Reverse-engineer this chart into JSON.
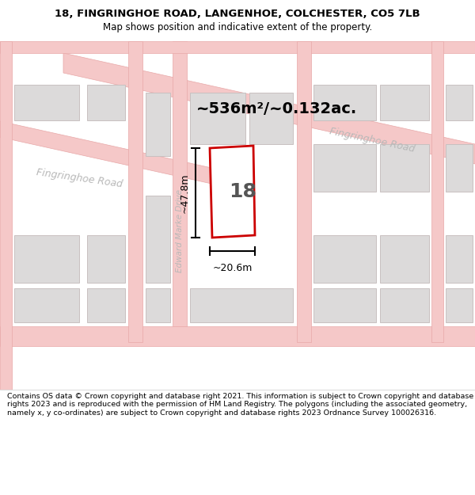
{
  "title_line1": "18, FINGRINGHOE ROAD, LANGENHOE, COLCHESTER, CO5 7LB",
  "title_line2": "Map shows position and indicative extent of the property.",
  "footer": "Contains OS data © Crown copyright and database right 2021. This information is subject to Crown copyright and database rights 2023 and is reproduced with the permission of HM Land Registry. The polygons (including the associated geometry, namely x, y co-ordinates) are subject to Crown copyright and database rights 2023 Ordnance Survey 100026316.",
  "area_label": "~536m²/~0.132ac.",
  "width_label": "~20.6m",
  "height_label": "~47.8m",
  "property_number": "18",
  "map_bg": "#f0eeec",
  "road_color": "#f5c8c8",
  "road_edge": "#e8a8a8",
  "bld_fill": "#dcdada",
  "bld_edge": "#c8c0c0",
  "plot_color": "#cc0000",
  "road_label_color": "#b8b8b8",
  "title_bg": "#ffffff",
  "footer_bg": "#ffffff",
  "label_road1": "Fingringhoe Road",
  "label_road2": "Fingringhoe Road",
  "label_road3": "Edward Marke Drive"
}
